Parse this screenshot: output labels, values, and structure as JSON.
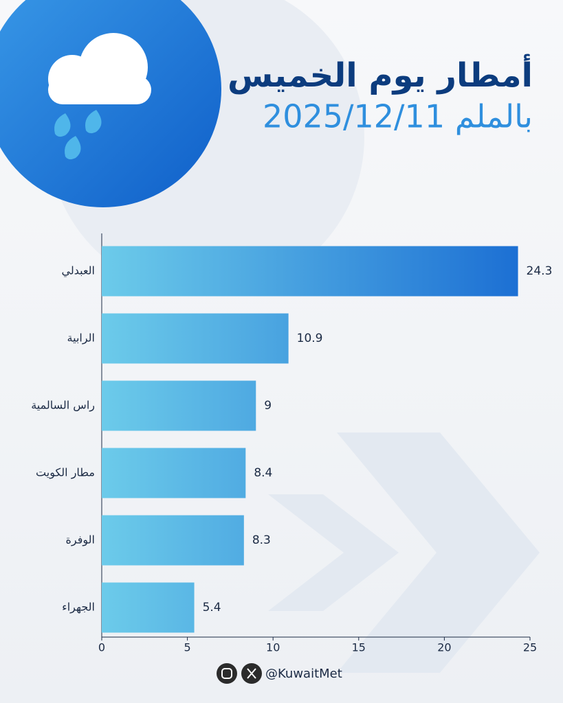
{
  "chart_data": {
    "type": "bar",
    "orientation": "horizontal",
    "title": "أمطار يوم الخميس",
    "subtitle": "2025/12/11 بالملم",
    "categories": [
      "العبدلي",
      "الرابية",
      "راس السالمية",
      "مطار الكويت",
      "الوفرة",
      "الجهراء"
    ],
    "values": [
      24.3,
      10.9,
      9,
      8.4,
      8.3,
      5.4
    ],
    "colors": [
      "#6ccbea",
      "#1a6dd3"
    ],
    "xlim": [
      0,
      25
    ],
    "xticks": [
      0,
      5,
      10,
      15,
      20,
      25
    ]
  },
  "footer": {
    "handle": "@KuwaitMet"
  }
}
